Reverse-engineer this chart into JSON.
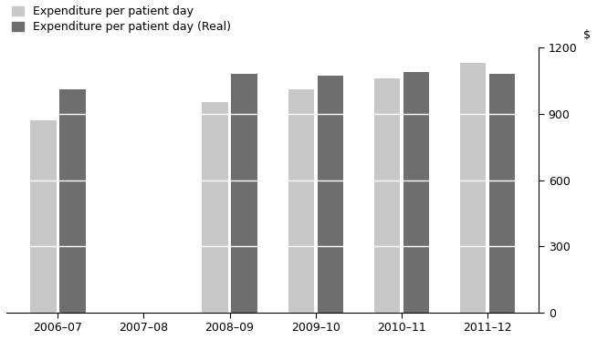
{
  "categories": [
    "2006–07",
    "2007–08",
    "2008–09",
    "2009–10",
    "2010–11",
    "2011–12"
  ],
  "values_nominal": [
    870,
    0,
    955,
    1010,
    1060,
    1130
  ],
  "values_real": [
    1010,
    0,
    1080,
    1075,
    1090,
    1080
  ],
  "color_nominal": "#c8c8c8",
  "color_real": "#6e6e6e",
  "ylim": [
    0,
    1200
  ],
  "yticks": [
    0,
    300,
    600,
    900,
    1200
  ],
  "ylabel": "$",
  "legend_nominal": "Expenditure per patient day",
  "legend_real": "Expenditure per patient day (Real)",
  "bar_width": 0.3,
  "grid_color": "#ffffff",
  "bg_color": "#ffffff",
  "legend_fontsize": 9,
  "tick_fontsize": 9,
  "bar_gap": 0.04
}
